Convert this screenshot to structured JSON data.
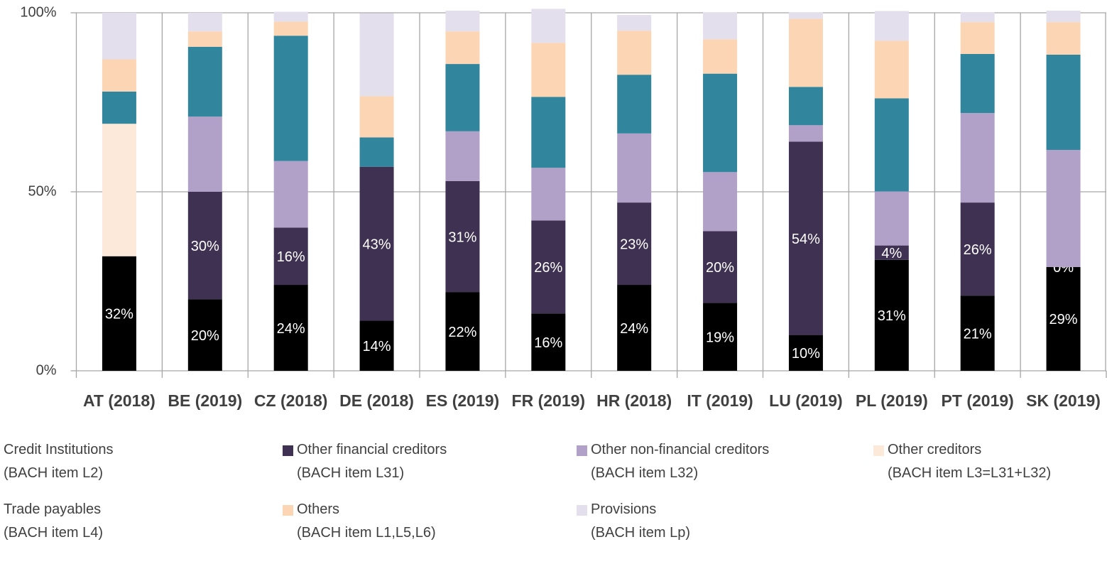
{
  "chart_data": {
    "type": "stacked_bar",
    "categories": [
      "AT (2018)",
      "BE (2019)",
      "CZ (2018)",
      "DE (2018)",
      "ES (2019)",
      "FR (2019)",
      "HR (2018)",
      "IT (2019)",
      "LU (2019)",
      "PL (2019)",
      "PT (2019)",
      "SK (2019)"
    ],
    "ylim": [
      0,
      100
    ],
    "yticks": [
      {
        "value": 0,
        "label": "0%"
      },
      {
        "value": 50,
        "label": "50%"
      },
      {
        "value": 100,
        "label": "100%"
      }
    ],
    "grid": true,
    "series": [
      {
        "name": "Credit Institutions",
        "item": "(BACH item L2)",
        "color": "#000000",
        "values": [
          32,
          20,
          24,
          14,
          22,
          16,
          24,
          19,
          10,
          31,
          21,
          29
        ],
        "value_labels": [
          "32%",
          "20%",
          "24%",
          "14%",
          "22%",
          "16%",
          "24%",
          "19%",
          "10%",
          "31%",
          "21%",
          "29%"
        ]
      },
      {
        "name": "Other financial creditors",
        "item": "(BACH item L31)",
        "color": "#3f3151",
        "values": [
          null,
          30,
          16,
          43,
          31,
          26,
          23,
          20,
          54,
          4,
          26,
          0
        ],
        "value_labels": [
          null,
          "30%",
          "16%",
          "43%",
          "31%",
          "26%",
          "23%",
          "20%",
          "54%",
          "4%",
          "26%",
          "0%"
        ]
      },
      {
        "name": "Other non-financial creditors",
        "item": "(BACH item L32)",
        "color": "#b1a0c7",
        "values": [
          null,
          21,
          18.6,
          0,
          13.9,
          14.7,
          19.3,
          16.5,
          4.6,
          15.1,
          25,
          32.7
        ]
      },
      {
        "name": "Other creditors",
        "item": "(BACH item L3=L31+L32)",
        "color": "#fde9d9",
        "values": [
          37,
          null,
          null,
          null,
          null,
          null,
          null,
          null,
          null,
          null,
          null,
          null
        ]
      },
      {
        "name": "Trade payables",
        "item": "(BACH item L4)",
        "color": "#31859c",
        "values": [
          9,
          19.5,
          35,
          8.2,
          18.8,
          19.8,
          16.4,
          27.5,
          10.7,
          26,
          16.5,
          26.6
        ]
      },
      {
        "name": "Others",
        "item": "(BACH item L1,L5,L6)",
        "color": "#fcd5b4",
        "values": [
          9,
          4.3,
          3.9,
          11.5,
          9.1,
          15.1,
          12.3,
          9.6,
          19,
          16.1,
          8.9,
          9.1
        ]
      },
      {
        "name": "Provisions",
        "item": "(BACH item Lp)",
        "color": "#e4dfec",
        "values": [
          13,
          5.2,
          2.8,
          23.2,
          5.8,
          9.5,
          4.4,
          7.5,
          1.8,
          8.3,
          2.8,
          3.2
        ]
      }
    ]
  }
}
